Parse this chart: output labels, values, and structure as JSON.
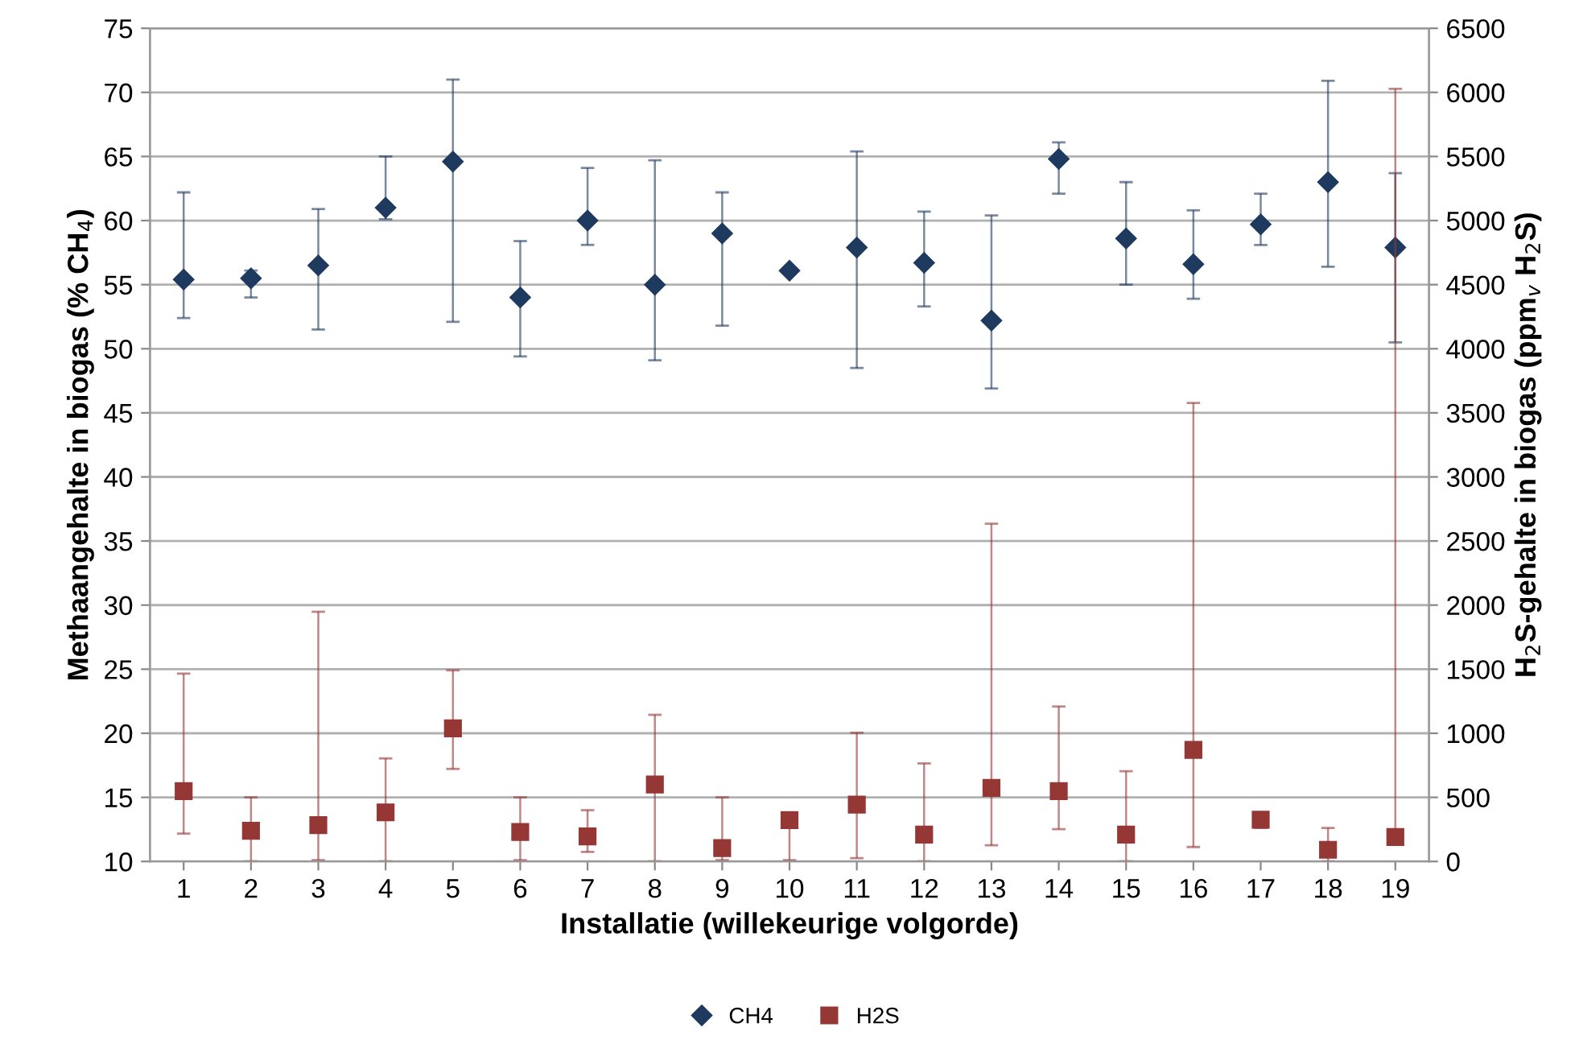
{
  "chart_data": {
    "type": "scatter",
    "xlabel": "Installatie (willekeurige volgorde)",
    "ylabel": "Methaangehalte in biogas (% CH$_{4}$)",
    "y2label": "H$_{2}$S-gehalte in biogas (ppm$_{v}$ H$_{2}$S)",
    "categories": [
      "1",
      "2",
      "3",
      "4",
      "5",
      "6",
      "7",
      "8",
      "9",
      "10",
      "11",
      "12",
      "13",
      "14",
      "15",
      "16",
      "17",
      "18",
      "19"
    ],
    "series": [
      {
        "name": "CH4",
        "color": "#1f3a5f",
        "marker": "diamond",
        "values": [
          55.4,
          55.5,
          56.5,
          61.0,
          64.6,
          54.0,
          60.0,
          55.0,
          59.0,
          56.1,
          57.9,
          56.7,
          52.2,
          64.8,
          58.6,
          56.6,
          59.7,
          63.0,
          57.9
        ],
        "errors": [
          [
            52.4,
            62.2
          ],
          [
            54.0,
            56.1
          ],
          [
            51.5,
            60.9
          ],
          [
            60.1,
            65.0
          ],
          [
            52.1,
            71.0
          ],
          [
            49.4,
            58.4
          ],
          [
            58.1,
            64.1
          ],
          [
            49.1,
            64.7
          ],
          [
            51.8,
            62.2
          ],
          null,
          [
            48.5,
            65.4
          ],
          [
            53.3,
            60.7
          ],
          [
            46.9,
            60.4
          ],
          [
            62.1,
            66.1
          ],
          [
            55.0,
            63.0
          ],
          [
            53.9,
            60.8
          ],
          [
            58.1,
            62.1
          ],
          [
            56.4,
            70.9
          ],
          [
            50.5,
            63.7
          ]
        ]
      },
      {
        "name": "H2S",
        "color": "#953735",
        "marker": "square",
        "axis": "y2",
        "values": [
          548,
          239,
          283,
          383,
          1039,
          230,
          196,
          600,
          104,
          322,
          443,
          209,
          574,
          548,
          209,
          870,
          326,
          91,
          191
        ],
        "errors": [
          [
            217,
            1465
          ],
          [
            0,
            500
          ],
          [
            10,
            1948
          ],
          [
            0,
            804
          ],
          [
            722,
            1491
          ],
          [
            10,
            500
          ],
          [
            74,
            400
          ],
          [
            0,
            1144
          ],
          [
            10,
            500
          ],
          [
            10,
            370
          ],
          [
            26,
            1004
          ],
          [
            0,
            765
          ],
          [
            126,
            2635
          ],
          [
            252,
            1209
          ],
          [
            0,
            704
          ],
          [
            113,
            3577
          ],
          [
            261,
            348
          ],
          [
            0,
            261
          ],
          [
            150,
            6027
          ]
        ]
      }
    ],
    "ylim": [
      10,
      75
    ],
    "yticks": [
      10,
      15,
      20,
      25,
      30,
      35,
      40,
      45,
      50,
      55,
      60,
      65,
      70,
      75
    ],
    "y2lim": [
      0,
      6500
    ],
    "y2ticks": [
      0,
      500,
      1000,
      1500,
      2000,
      2500,
      3000,
      3500,
      4000,
      4500,
      5000,
      5500,
      6000,
      6500
    ],
    "grid": "y",
    "legend": "bottom"
  }
}
